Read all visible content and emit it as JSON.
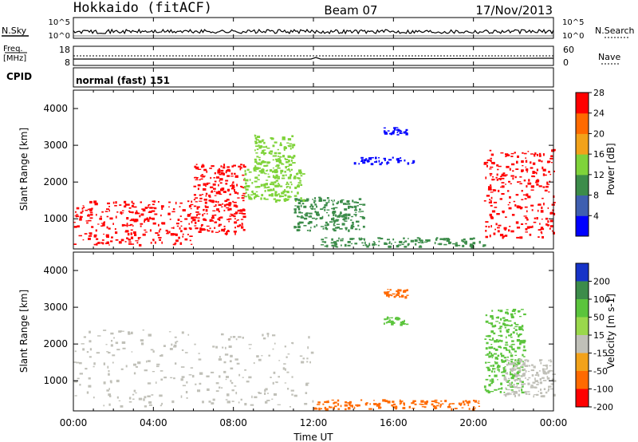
{
  "header": {
    "radar": "Hokkaido (fitACF)",
    "beam": "Beam 07",
    "date": "17/Nov/2013"
  },
  "noise_panel": {
    "left_label": "N.Sky",
    "right_label": "N.Search",
    "left_ticks": [
      "10^5",
      "10^0"
    ],
    "right_ticks": [
      "10^5",
      "10^0"
    ]
  },
  "freq_panel": {
    "left_label_top": "Freq.",
    "left_label_bottom": "[MHz]",
    "right_label": "Nave",
    "left_ticks": [
      "18",
      "8"
    ],
    "right_ticks": [
      "60",
      "0"
    ]
  },
  "cpid_panel": {
    "label": "CPID",
    "value": "normal (fast) 151"
  },
  "axes": {
    "xlabel": "Time UT",
    "ylabel": "Slant Range [km]",
    "x_ticks": [
      "00:00",
      "04:00",
      "08:00",
      "12:00",
      "16:00",
      "20:00",
      "00:00"
    ],
    "y_ticks": [
      "1000",
      "2000",
      "3000",
      "4000"
    ],
    "y_tick_values": [
      1000,
      2000,
      3000,
      4000
    ],
    "y_range": [
      180,
      4500
    ]
  },
  "power_colorbar": {
    "label": "Power [dB]",
    "ticks": [
      "4",
      "8",
      "12",
      "16",
      "20",
      "24",
      "28"
    ],
    "colors": [
      "#0000ff",
      "#3f5fb0",
      "#3c8c4a",
      "#7fd33a",
      "#f2a21a",
      "#ff6a00",
      "#ff0000"
    ]
  },
  "velocity_colorbar": {
    "label": "Velocity [m s-1]",
    "ticks": [
      "200",
      "100",
      "50",
      "15",
      "-15",
      "-50",
      "-100",
      "-200"
    ],
    "colors": [
      "#1633c8",
      "#3c8c4a",
      "#5bc43c",
      "#9ad84c",
      "#c0c0b8",
      "#f2a21a",
      "#ff6a00",
      "#ff0000"
    ]
  },
  "chart_data": {
    "type": "heatmap",
    "title": "Hokkaido (fitACF)",
    "xlabel": "Time UT",
    "ylabel": "Slant Range [km]",
    "xlim": [
      "00:00",
      "24:00"
    ],
    "ylim": [
      180,
      4500
    ],
    "panels": [
      {
        "quantity": "Power [dB]",
        "regions": [
          {
            "t_start": "00:00",
            "t_end": "06:00",
            "range_km": [
              300,
              1500
            ],
            "value_db": 28
          },
          {
            "t_start": "06:00",
            "t_end": "08:30",
            "range_km": [
              600,
              2500
            ],
            "value_db": 28
          },
          {
            "t_start": "08:30",
            "t_end": "11:30",
            "range_km": [
              1500,
              2400
            ],
            "value_db": 16
          },
          {
            "t_start": "09:00",
            "t_end": "11:00",
            "range_km": [
              2300,
              3300
            ],
            "value_db": 14
          },
          {
            "t_start": "11:00",
            "t_end": "14:30",
            "range_km": [
              700,
              1600
            ],
            "value_db": 12
          },
          {
            "t_start": "15:30",
            "t_end": "16:40",
            "range_km": [
              3300,
              3500
            ],
            "value_db": 4
          },
          {
            "t_start": "14:00",
            "t_end": "17:00",
            "range_km": [
              2500,
              2700
            ],
            "value_db": 4
          },
          {
            "t_start": "20:30",
            "t_end": "24:00",
            "range_km": [
              500,
              2900
            ],
            "value_db": 28
          },
          {
            "t_start": "12:00",
            "t_end": "20:30",
            "range_km": [
              250,
              500
            ],
            "value_db": 12
          }
        ]
      },
      {
        "quantity": "Velocity [m s-1]",
        "regions": [
          {
            "t_start": "00:00",
            "t_end": "12:00",
            "range_km": [
              300,
              2400
            ],
            "value_ms": 0
          },
          {
            "t_start": "15:30",
            "t_end": "16:40",
            "range_km": [
              3300,
              3500
            ],
            "value_ms": -50
          },
          {
            "t_start": "15:30",
            "t_end": "16:40",
            "range_km": [
              2550,
              2750
            ],
            "value_ms": 50
          },
          {
            "t_start": "20:30",
            "t_end": "22:30",
            "range_km": [
              700,
              3000
            ],
            "value_ms": 50
          },
          {
            "t_start": "12:00",
            "t_end": "20:30",
            "range_km": [
              250,
              500
            ],
            "value_ms": -50
          },
          {
            "t_start": "21:30",
            "t_end": "24:00",
            "range_km": [
              600,
              1600
            ],
            "value_ms": 0
          }
        ]
      }
    ]
  }
}
